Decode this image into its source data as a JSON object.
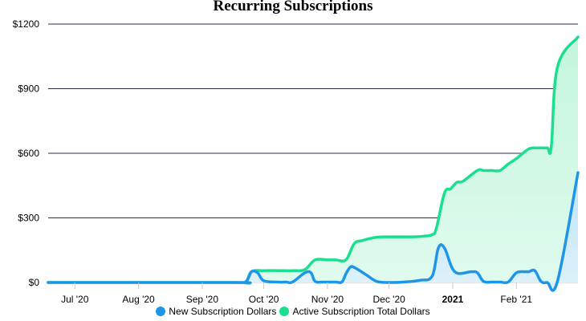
{
  "chart_data": {
    "type": "area",
    "title": "Recurring Subscriptions",
    "xlabel": "",
    "ylabel": "",
    "ylim": [
      0,
      1200
    ],
    "y_ticks": [
      {
        "value": 0,
        "label": "$0"
      },
      {
        "value": 300,
        "label": "$300"
      },
      {
        "value": 600,
        "label": "$600"
      },
      {
        "value": 900,
        "label": "$900"
      },
      {
        "value": 1200,
        "label": "$1200"
      }
    ],
    "xlim": [
      "2020-06-18",
      "2021-03-03"
    ],
    "x_ticks": [
      {
        "date": "2020-07-01",
        "label": "Jul '20",
        "bold": false
      },
      {
        "date": "2020-08-01",
        "label": "Aug '20",
        "bold": false
      },
      {
        "date": "2020-09-01",
        "label": "Sep '20",
        "bold": false
      },
      {
        "date": "2020-10-01",
        "label": "Oct '20",
        "bold": false
      },
      {
        "date": "2020-11-01",
        "label": "Nov '20",
        "bold": false
      },
      {
        "date": "2020-12-01",
        "label": "Dec '20",
        "bold": false
      },
      {
        "date": "2021-01-01",
        "label": "2021",
        "bold": true
      },
      {
        "date": "2021-02-01",
        "label": "Feb '21",
        "bold": false
      }
    ],
    "grid": true,
    "legend_position": "bottom",
    "series": [
      {
        "name": "Active Subscription Total Dollars",
        "color": "#19e08e",
        "fill_top": "#c4f5dd",
        "fill_bottom": "#dffbee",
        "x": [
          "2020-06-18",
          "2020-09-15",
          "2020-09-22",
          "2020-09-25",
          "2020-10-01",
          "2020-10-08",
          "2020-10-15",
          "2020-10-21",
          "2020-10-26",
          "2020-11-01",
          "2020-11-05",
          "2020-11-10",
          "2020-11-14",
          "2020-11-18",
          "2020-11-25",
          "2020-12-01",
          "2020-12-08",
          "2020-12-13",
          "2020-12-18",
          "2020-12-22",
          "2020-12-24",
          "2020-12-28",
          "2020-12-31",
          "2021-01-03",
          "2021-01-06",
          "2021-01-13",
          "2021-01-16",
          "2021-01-20",
          "2021-01-24",
          "2021-01-28",
          "2021-02-01",
          "2021-02-07",
          "2021-02-11",
          "2021-02-16",
          "2021-02-18",
          "2021-02-21",
          "2021-03-03"
        ],
        "values": [
          0,
          0,
          2,
          50,
          55,
          55,
          55,
          60,
          105,
          105,
          105,
          105,
          180,
          195,
          210,
          212,
          212,
          212,
          215,
          222,
          250,
          415,
          435,
          465,
          470,
          520,
          520,
          520,
          520,
          550,
          575,
          620,
          625,
          625,
          630,
          1000,
          1140
        ]
      },
      {
        "name": "New Subscription Dollars",
        "color": "#1e96e8",
        "fill_top": "#bfe3f5",
        "fill_bottom": "#def2fb",
        "x": [
          "2020-06-18",
          "2020-09-15",
          "2020-09-22",
          "2020-09-25",
          "2020-09-28",
          "2020-10-01",
          "2020-10-08",
          "2020-10-12",
          "2020-10-15",
          "2020-10-21",
          "2020-10-24",
          "2020-10-26",
          "2020-10-30",
          "2020-11-05",
          "2020-11-08",
          "2020-11-10",
          "2020-11-12",
          "2020-11-14",
          "2020-11-20",
          "2020-11-25",
          "2020-12-01",
          "2020-12-08",
          "2020-12-16",
          "2020-12-22",
          "2020-12-25",
          "2020-12-28",
          "2021-01-02",
          "2021-01-10",
          "2021-01-13",
          "2021-01-16",
          "2021-01-20",
          "2021-01-24",
          "2021-01-28",
          "2021-02-01",
          "2021-02-05",
          "2021-02-07",
          "2021-02-10",
          "2021-02-13",
          "2021-02-16",
          "2021-02-21",
          "2021-03-03"
        ],
        "values": [
          0,
          0,
          2,
          50,
          45,
          8,
          2,
          2,
          2,
          45,
          45,
          5,
          2,
          2,
          2,
          40,
          70,
          70,
          35,
          5,
          0,
          2,
          10,
          30,
          160,
          160,
          50,
          50,
          45,
          5,
          2,
          2,
          2,
          45,
          50,
          50,
          55,
          5,
          0,
          5,
          510
        ]
      }
    ],
    "legend_order": [
      "New Subscription Dollars",
      "Active Subscription Total Dollars"
    ]
  }
}
